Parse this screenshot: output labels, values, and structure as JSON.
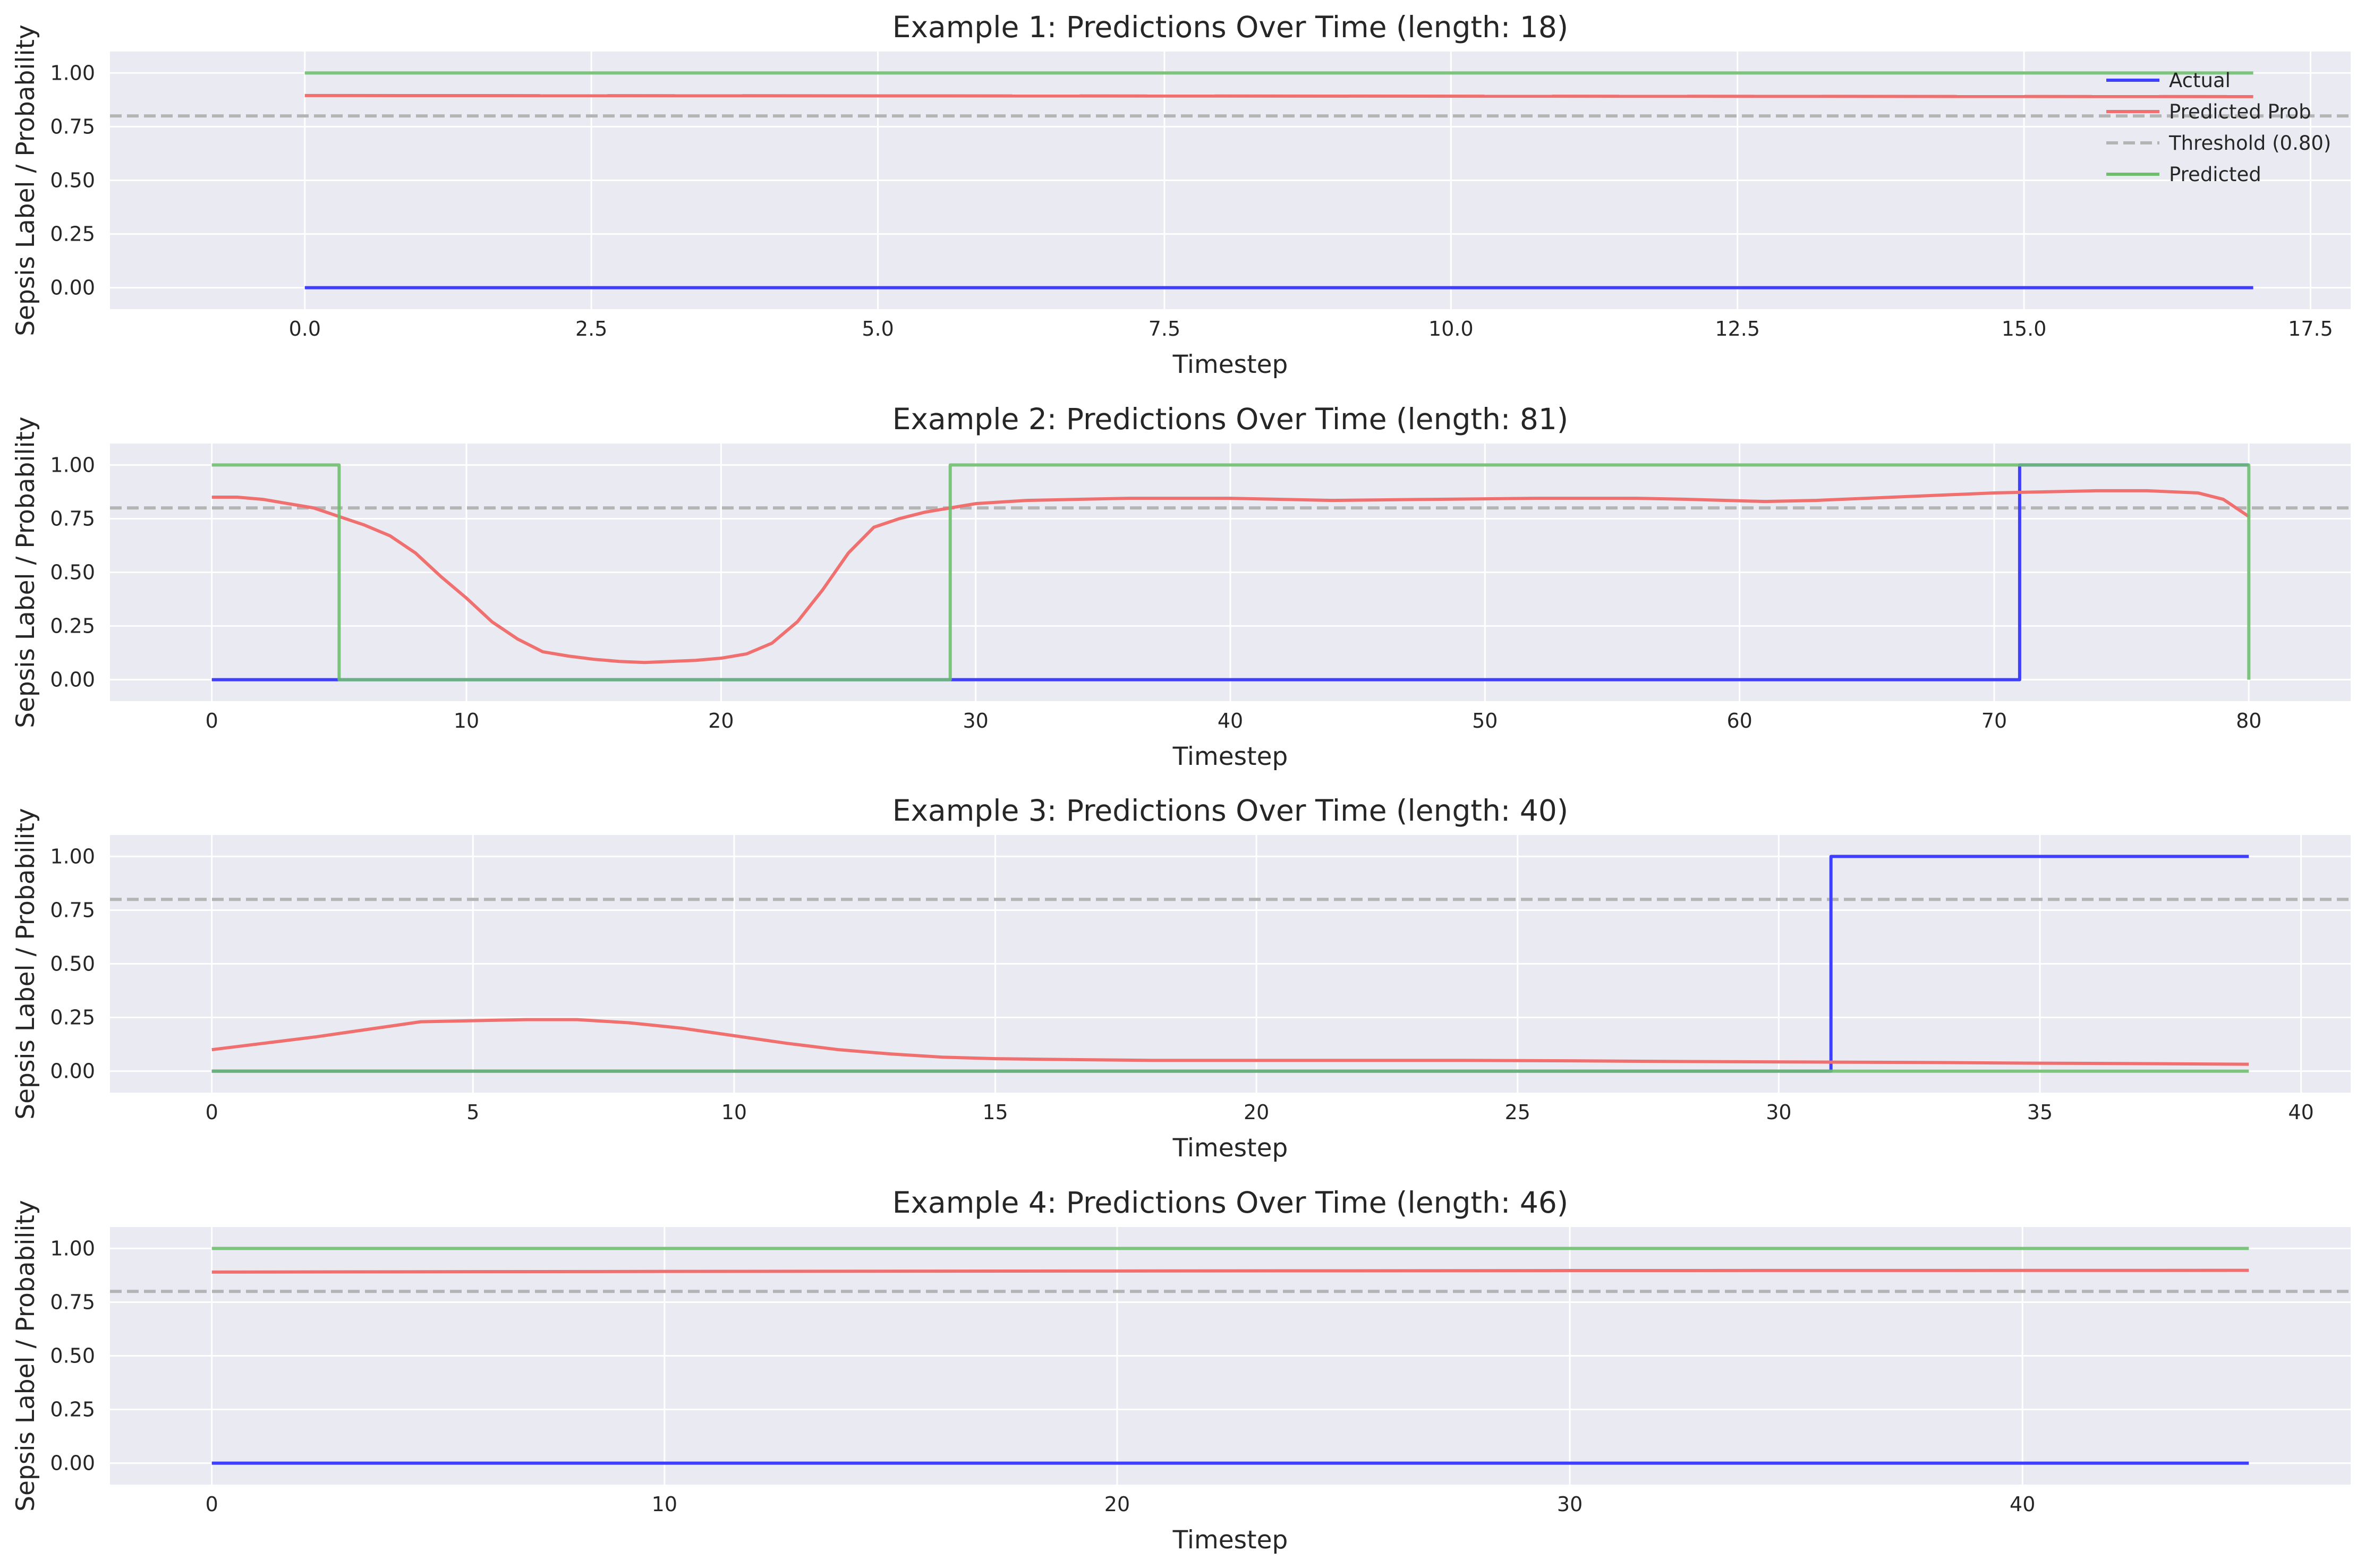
{
  "colors": {
    "background": "#eaeaf2",
    "grid": "#ffffff",
    "actual": "#3f3fff",
    "predicted_prob": "#f07070",
    "threshold": "#b4b4b4",
    "predicted": "#6fbf6f"
  },
  "chart_data": [
    {
      "type": "line",
      "title": "Example 1: Predictions Over Time (length: 18)",
      "xlabel": "Timestep",
      "ylabel": "Sepsis Label / Probability",
      "xlim": [
        -1.7,
        17.85
      ],
      "ylim": [
        -0.1,
        1.1
      ],
      "xticks": [
        0.0,
        2.5,
        5.0,
        7.5,
        10.0,
        12.5,
        15.0,
        17.5
      ],
      "xtick_labels": [
        "0.0",
        "2.5",
        "5.0",
        "7.5",
        "10.0",
        "12.5",
        "15.0",
        "17.5"
      ],
      "yticks": [
        0.0,
        0.25,
        0.5,
        0.75,
        1.0
      ],
      "ytick_labels": [
        "0.00",
        "0.25",
        "0.50",
        "0.75",
        "1.00"
      ],
      "grid": true,
      "legend": {
        "position": "upper right",
        "entries": [
          "Actual",
          "Predicted Prob",
          "Threshold (0.80)",
          "Predicted"
        ]
      },
      "threshold": 0.8,
      "series": [
        {
          "name": "Actual",
          "step": true,
          "x": [
            0,
            17
          ],
          "y": [
            0,
            0
          ]
        },
        {
          "name": "Predicted Prob",
          "step": false,
          "x": [
            0,
            17
          ],
          "y": [
            0.895,
            0.89
          ]
        },
        {
          "name": "Predicted",
          "step": true,
          "x": [
            0,
            17
          ],
          "y": [
            1,
            1
          ]
        }
      ]
    },
    {
      "type": "line",
      "title": "Example 2: Predictions Over Time (length: 81)",
      "xlabel": "Timestep",
      "ylabel": "Sepsis Label / Probability",
      "xlim": [
        -4,
        84
      ],
      "ylim": [
        -0.1,
        1.1
      ],
      "xticks": [
        0,
        10,
        20,
        30,
        40,
        50,
        60,
        70,
        80
      ],
      "xtick_labels": [
        "0",
        "10",
        "20",
        "30",
        "40",
        "50",
        "60",
        "70",
        "80"
      ],
      "yticks": [
        0.0,
        0.25,
        0.5,
        0.75,
        1.0
      ],
      "ytick_labels": [
        "0.00",
        "0.25",
        "0.50",
        "0.75",
        "1.00"
      ],
      "grid": true,
      "legend": null,
      "threshold": 0.8,
      "series": [
        {
          "name": "Actual",
          "step": true,
          "x": [
            0,
            71,
            80
          ],
          "y": [
            0,
            1,
            1
          ]
        },
        {
          "name": "Predicted Prob",
          "step": false,
          "x": [
            0,
            1,
            2,
            3,
            4,
            5,
            6,
            7,
            8,
            9,
            10,
            11,
            12,
            13,
            14,
            15,
            16,
            17,
            18,
            19,
            20,
            21,
            22,
            23,
            24,
            25,
            26,
            27,
            28,
            29,
            30,
            32,
            34,
            36,
            40,
            44,
            48,
            52,
            56,
            58,
            61,
            63,
            66,
            70,
            74,
            76,
            77,
            78,
            79,
            80
          ],
          "y": [
            0.85,
            0.85,
            0.84,
            0.82,
            0.8,
            0.76,
            0.72,
            0.67,
            0.59,
            0.48,
            0.38,
            0.27,
            0.19,
            0.13,
            0.11,
            0.095,
            0.085,
            0.08,
            0.085,
            0.09,
            0.1,
            0.12,
            0.17,
            0.27,
            0.42,
            0.59,
            0.71,
            0.75,
            0.78,
            0.8,
            0.82,
            0.835,
            0.84,
            0.845,
            0.845,
            0.835,
            0.84,
            0.845,
            0.845,
            0.84,
            0.83,
            0.835,
            0.85,
            0.87,
            0.88,
            0.88,
            0.875,
            0.87,
            0.84,
            0.76
          ]
        },
        {
          "name": "Predicted",
          "step": true,
          "x": [
            0,
            5,
            29,
            80,
            80
          ],
          "y": [
            1,
            0,
            1,
            1,
            0
          ]
        }
      ]
    },
    {
      "type": "line",
      "title": "Example 3: Predictions Over Time (length: 40)",
      "xlabel": "Timestep",
      "ylabel": "Sepsis Label / Probability",
      "xlim": [
        -1.95,
        40.95
      ],
      "ylim": [
        -0.1,
        1.1
      ],
      "xticks": [
        0,
        5,
        10,
        15,
        20,
        25,
        30,
        35,
        40
      ],
      "xtick_labels": [
        "0",
        "5",
        "10",
        "15",
        "20",
        "25",
        "30",
        "35",
        "40"
      ],
      "yticks": [
        0.0,
        0.25,
        0.5,
        0.75,
        1.0
      ],
      "ytick_labels": [
        "0.00",
        "0.25",
        "0.50",
        "0.75",
        "1.00"
      ],
      "grid": true,
      "legend": null,
      "threshold": 0.8,
      "series": [
        {
          "name": "Actual",
          "step": true,
          "x": [
            0,
            31,
            39
          ],
          "y": [
            0,
            1,
            1
          ]
        },
        {
          "name": "Predicted Prob",
          "step": false,
          "x": [
            0,
            1,
            2,
            3,
            4,
            5,
            6,
            7,
            8,
            9,
            10,
            11,
            12,
            13,
            14,
            15,
            16,
            18,
            20,
            22,
            24,
            26,
            28,
            31,
            33,
            35,
            37,
            39
          ],
          "y": [
            0.1,
            0.13,
            0.16,
            0.195,
            0.23,
            0.235,
            0.24,
            0.24,
            0.225,
            0.2,
            0.165,
            0.13,
            0.1,
            0.08,
            0.065,
            0.058,
            0.055,
            0.05,
            0.05,
            0.05,
            0.05,
            0.048,
            0.045,
            0.042,
            0.04,
            0.037,
            0.035,
            0.032
          ]
        },
        {
          "name": "Predicted",
          "step": true,
          "x": [
            0,
            39
          ],
          "y": [
            0,
            0
          ]
        }
      ]
    },
    {
      "type": "line",
      "title": "Example 4: Predictions Over Time (length: 46)",
      "xlabel": "Timestep",
      "ylabel": "Sepsis Label / Probability",
      "xlim": [
        -2.25,
        47.25
      ],
      "ylim": [
        -0.1,
        1.1
      ],
      "xticks": [
        0,
        10,
        20,
        30,
        40
      ],
      "xtick_labels": [
        "0",
        "10",
        "20",
        "30",
        "40"
      ],
      "yticks": [
        0.0,
        0.25,
        0.5,
        0.75,
        1.0
      ],
      "ytick_labels": [
        "0.00",
        "0.25",
        "0.50",
        "0.75",
        "1.00"
      ],
      "grid": true,
      "legend": null,
      "threshold": 0.8,
      "series": [
        {
          "name": "Actual",
          "step": true,
          "x": [
            0,
            45
          ],
          "y": [
            0,
            0
          ]
        },
        {
          "name": "Predicted Prob",
          "step": false,
          "x": [
            0,
            10,
            20,
            30,
            45
          ],
          "y": [
            0.89,
            0.893,
            0.895,
            0.897,
            0.898
          ]
        },
        {
          "name": "Predicted",
          "step": true,
          "x": [
            0,
            45
          ],
          "y": [
            1,
            1
          ]
        }
      ]
    }
  ]
}
